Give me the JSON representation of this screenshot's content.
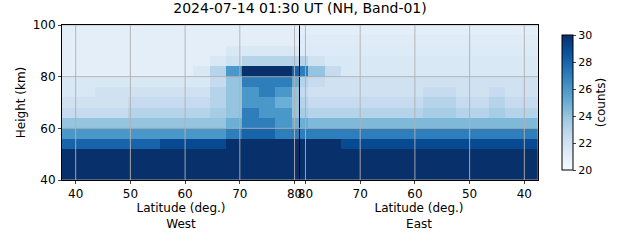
{
  "chart_data": {
    "type": "heatmap",
    "title": "2024-07-14 01:30 UT (NH, Band-01)",
    "y_label": "Height (km)",
    "y": [
      42,
      46,
      50,
      54,
      58,
      62,
      66,
      70,
      74,
      78,
      82,
      86,
      90,
      94,
      98
    ],
    "ylim": [
      40,
      100
    ],
    "yticks": [
      40,
      60,
      80,
      100
    ],
    "grid": true,
    "colorbar": {
      "title": "(counts)",
      "range": [
        20,
        30
      ],
      "ticks": [
        20,
        22,
        24,
        26,
        28,
        30
      ]
    },
    "panels": [
      {
        "x_label": "Latitude (deg.)\nWest",
        "x": [
          39,
          42,
          45,
          48,
          51,
          54,
          57,
          60,
          63,
          66,
          69,
          72,
          75,
          78,
          81
        ],
        "xlim": [
          37.5,
          81
        ],
        "xticks": [
          40,
          50,
          60,
          70,
          80
        ],
        "cells": [
          [
            32,
            32,
            32,
            32,
            32,
            32,
            32,
            32,
            32,
            32,
            32,
            32,
            32,
            32,
            32
          ],
          [
            32,
            32,
            32,
            32,
            32,
            32,
            32,
            32,
            32,
            32,
            32,
            32,
            32,
            32,
            32
          ],
          [
            31,
            31,
            31,
            31,
            31,
            31,
            31,
            31,
            31,
            31,
            31,
            31,
            31,
            31,
            31
          ],
          [
            28,
            28,
            28,
            28,
            28,
            28,
            29,
            29,
            29,
            29,
            30,
            30,
            30,
            30,
            30
          ],
          [
            26,
            26,
            26,
            26,
            26,
            26,
            26,
            26,
            26,
            26,
            27,
            28,
            28,
            27,
            27
          ],
          [
            24,
            24,
            24,
            24,
            24,
            24,
            24,
            24,
            24,
            24,
            25,
            27,
            27,
            26,
            25
          ],
          [
            22.5,
            22.5,
            22.5,
            22.5,
            23,
            23,
            23,
            23,
            23,
            23.5,
            24,
            27,
            26,
            26,
            24
          ],
          [
            22,
            22,
            22,
            22,
            22.5,
            22.5,
            22.5,
            22.5,
            22.5,
            23,
            24,
            26,
            26,
            25,
            24
          ],
          [
            21.5,
            21.5,
            22,
            22,
            22,
            22,
            22,
            22,
            22,
            23,
            24,
            26,
            27,
            26,
            24
          ],
          [
            21.5,
            21.5,
            21.5,
            21.5,
            21.5,
            21.5,
            21.5,
            21.5,
            21.5,
            22.5,
            24,
            27,
            27,
            27,
            25
          ],
          [
            21,
            21,
            21,
            21,
            21,
            21,
            21,
            21,
            21.5,
            23,
            26,
            30,
            30,
            30,
            28
          ],
          [
            21,
            21,
            21,
            21,
            21,
            21,
            21,
            21,
            21,
            21.5,
            22,
            23,
            23,
            23,
            23
          ],
          [
            21,
            21,
            21,
            21,
            21,
            21,
            21,
            21,
            21,
            21,
            21.5,
            21.5,
            21.5,
            21.5,
            21.5
          ],
          [
            21,
            21,
            21,
            21,
            21,
            21,
            21,
            21,
            21,
            21,
            21,
            21,
            21,
            21,
            21
          ],
          [
            21,
            21,
            21,
            21,
            21,
            21,
            21,
            21,
            21,
            21,
            21,
            21,
            21,
            21,
            21
          ]
        ]
      },
      {
        "x_label": "Latitude (deg.)\nEast",
        "x": [
          39,
          42,
          45,
          48,
          51,
          54,
          57,
          60,
          63,
          66,
          69,
          72,
          75,
          78,
          81
        ],
        "xlim": [
          81,
          37.5
        ],
        "xticks": [
          40,
          50,
          60,
          70,
          80
        ],
        "cells": [
          [
            32,
            32,
            32,
            32,
            32,
            32,
            32,
            32,
            32,
            32,
            32,
            32,
            32,
            32,
            32
          ],
          [
            32,
            32,
            32,
            32,
            32,
            32,
            32,
            32,
            32,
            32,
            32,
            32,
            32,
            32,
            32
          ],
          [
            31,
            31,
            31,
            31,
            31,
            31,
            31,
            31,
            31,
            31,
            31,
            31,
            31,
            31,
            31
          ],
          [
            29,
            29,
            29,
            29,
            29,
            29,
            29,
            29,
            29,
            29,
            29,
            29,
            30,
            30,
            30
          ],
          [
            27,
            27,
            27,
            27,
            27,
            27,
            27,
            27,
            27,
            27,
            27,
            27,
            27,
            27,
            27
          ],
          [
            24.5,
            24.5,
            24.5,
            24.5,
            24.5,
            24.5,
            24.5,
            24.5,
            24.5,
            24.5,
            24.5,
            24.5,
            24.5,
            24.5,
            25
          ],
          [
            23,
            23,
            23.5,
            23,
            23,
            23.5,
            23.5,
            23,
            23,
            23,
            23,
            23,
            23,
            23,
            23.5
          ],
          [
            22.5,
            22.5,
            23,
            22.5,
            22.5,
            23,
            23,
            22.5,
            22.5,
            22.5,
            22.5,
            22.5,
            22.5,
            22.5,
            23
          ],
          [
            22,
            22,
            22.5,
            22,
            22,
            22.5,
            22.5,
            22,
            22,
            22,
            22,
            22,
            22,
            22,
            22.5
          ],
          [
            22,
            22,
            22,
            22,
            22,
            22,
            22,
            22,
            22,
            22,
            22,
            22,
            22,
            22.5,
            23
          ],
          [
            21.5,
            21.5,
            21.5,
            21.5,
            21.5,
            21.5,
            21.5,
            21.5,
            21.5,
            21.5,
            21.5,
            21.5,
            22.5,
            24,
            27
          ],
          [
            21.5,
            21.5,
            21.5,
            21.5,
            21.5,
            21.5,
            21.5,
            21.5,
            21.5,
            21.5,
            21.5,
            21.5,
            21.5,
            22,
            23
          ],
          [
            21.3,
            21.3,
            21.3,
            21.3,
            21.3,
            21.3,
            21.3,
            21.3,
            21.3,
            21.3,
            21.3,
            21.3,
            21.3,
            21.3,
            21.3
          ],
          [
            21.2,
            21.2,
            21.2,
            21.2,
            21.2,
            21.2,
            21.2,
            21.2,
            21.2,
            21.2,
            21.2,
            21.2,
            21.2,
            21.2,
            21.2
          ],
          [
            21,
            21,
            21,
            21,
            21,
            21,
            21,
            21,
            21,
            21,
            21,
            21,
            21,
            21,
            21
          ]
        ]
      }
    ]
  }
}
